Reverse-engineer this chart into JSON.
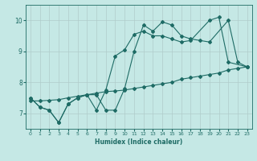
{
  "xlabel": "Humidex (Indice chaleur)",
  "background_color": "#c5e8e5",
  "grid_color": "#b0ccca",
  "line_color": "#1e6b65",
  "xlim": [
    -0.5,
    23.5
  ],
  "ylim": [
    6.5,
    10.5
  ],
  "yticks": [
    7,
    8,
    9,
    10
  ],
  "xticks": [
    0,
    1,
    2,
    3,
    4,
    5,
    6,
    7,
    8,
    9,
    10,
    11,
    12,
    13,
    14,
    15,
    16,
    17,
    18,
    19,
    20,
    21,
    22,
    23
  ],
  "series": [
    {
      "x": [
        0,
        1,
        2,
        3,
        4,
        5,
        6,
        7,
        8,
        9,
        10,
        11,
        12,
        13,
        14,
        15,
        16,
        17,
        18,
        19,
        21,
        22,
        23
      ],
      "y": [
        7.5,
        7.2,
        7.1,
        6.7,
        7.3,
        7.5,
        7.6,
        7.6,
        7.1,
        7.1,
        7.8,
        9.0,
        9.85,
        9.65,
        9.95,
        9.85,
        9.5,
        9.4,
        9.35,
        9.3,
        10.0,
        8.65,
        8.5
      ]
    },
    {
      "x": [
        0,
        1,
        2,
        3,
        4,
        5,
        6,
        7,
        8,
        9,
        10,
        11,
        12,
        13,
        14,
        15,
        16,
        17,
        19,
        20,
        21,
        23
      ],
      "y": [
        7.5,
        7.2,
        7.1,
        6.7,
        7.3,
        7.5,
        7.6,
        7.1,
        7.75,
        8.85,
        9.05,
        9.55,
        9.65,
        9.5,
        9.5,
        9.4,
        9.3,
        9.35,
        10.0,
        10.1,
        8.65,
        8.5
      ]
    },
    {
      "x": [
        0,
        1,
        2,
        3,
        4,
        5,
        6,
        7,
        8,
        9,
        10,
        11,
        12,
        13,
        14,
        15,
        16,
        17,
        18,
        19,
        20,
        21,
        22,
        23
      ],
      "y": [
        7.4,
        7.4,
        7.42,
        7.44,
        7.5,
        7.55,
        7.6,
        7.65,
        7.7,
        7.72,
        7.75,
        7.8,
        7.85,
        7.9,
        7.95,
        8.0,
        8.1,
        8.15,
        8.2,
        8.25,
        8.3,
        8.4,
        8.45,
        8.5
      ]
    }
  ]
}
